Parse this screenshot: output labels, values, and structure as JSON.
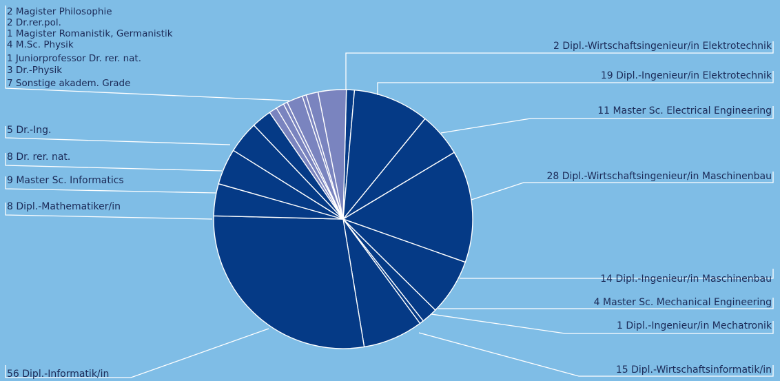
{
  "chart_data": {
    "type": "pie",
    "colors": {
      "dark": "#053a86",
      "light": "#7a84bf",
      "background": "#7fbde6",
      "line": "#ffffff",
      "text": "#1b2a57"
    },
    "slices": [
      {
        "value": 2,
        "label": "Dipl.-Wirtschaftsingenieur/in Elektrotechnik",
        "display": "2 Dipl.-Wirtschaftsingenieur/in Elektrotechnik",
        "color": "dark"
      },
      {
        "value": 19,
        "label": "Dipl.-Ingenieur/in Elektrotechnik",
        "display": "19 Dipl.-Ingenieur/in Elektrotechnik",
        "color": "dark"
      },
      {
        "value": 11,
        "label": "Master Sc. Electrical Engineering",
        "display": "11 Master Sc. Electrical Engineering",
        "color": "dark"
      },
      {
        "value": 28,
        "label": "Dipl.-Wirtschaftsingenieur/in Maschinenbau",
        "display": "28 Dipl.-Wirtschaftsingenieur/in Maschinenbau",
        "color": "dark"
      },
      {
        "value": 14,
        "label": "Dipl.-Ingenieur/in Maschinenbau",
        "display": "14 Dipl.-Ingenieur/in Maschinenbau",
        "color": "dark"
      },
      {
        "value": 4,
        "label": "Master Sc. Mechanical Engineering",
        "display": "4 Master Sc. Mechanical Engineering",
        "color": "dark"
      },
      {
        "value": 1,
        "label": "Dipl.-Ingenieur/in Mechatronik",
        "display": "1 Dipl.-Ingenieur/in Mechatronik",
        "color": "dark"
      },
      {
        "value": 15,
        "label": "Dipl.-Wirtschaftsinformatik/in",
        "display": "15 Dipl.-Wirtschaftsinformatik/in",
        "color": "dark"
      },
      {
        "value": 56,
        "label": "Dipl.-Informatik/in",
        "display": "56 Dipl.-Informatik/in",
        "color": "dark"
      },
      {
        "value": 8,
        "label": "Dipl.-Mathematiker/in",
        "display": "8 Dipl.-Mathematiker/in",
        "color": "dark"
      },
      {
        "value": 9,
        "label": "Master Sc. Informatics",
        "display": "9 Master Sc. Informatics",
        "color": "dark"
      },
      {
        "value": 8,
        "label": "Dr. rer. nat.",
        "display": "8 Dr. rer. nat.",
        "color": "dark"
      },
      {
        "value": 5,
        "label": "Dr.-Ing.",
        "display": "5 Dr.-Ing.",
        "color": "dark"
      },
      {
        "value": 2,
        "label": "Magister Philosophie",
        "display": "2 Magister Philosophie",
        "color": "light"
      },
      {
        "value": 2,
        "label": "Dr.rer.pol.",
        "display": "2 Dr.rer.pol.",
        "color": "light"
      },
      {
        "value": 1,
        "label": "Magister Romanistik, Germanistik",
        "display": "1 Magister Romanistik, Germanistik",
        "color": "light"
      },
      {
        "value": 4,
        "label": "M.Sc. Physik",
        "display": "4 M.Sc. Physik",
        "color": "light"
      },
      {
        "value": 1,
        "label": "Juniorprofessor Dr. rer. nat.",
        "display": "1 Juniorprofessor Dr. rer. nat.",
        "color": "light"
      },
      {
        "value": 3,
        "label": "Dr.-Physik",
        "display": "3 Dr.-Physik",
        "color": "light"
      },
      {
        "value": 7,
        "label": "Sonstige akadem. Grade",
        "display": "7 Sonstige akadem. Grade",
        "color": "light"
      }
    ]
  }
}
